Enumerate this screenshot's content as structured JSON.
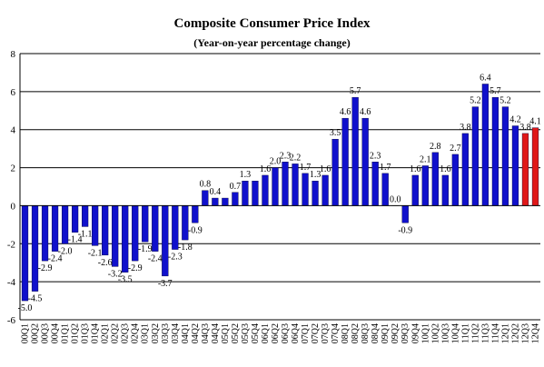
{
  "chart_data": {
    "type": "bar",
    "title": "Composite Consumer Price Index",
    "subtitle": "(Year-on-year percentage change)",
    "ylim": [
      -6,
      8
    ],
    "yticks": [
      "-6",
      "-4",
      "-2",
      "0",
      "2",
      "4",
      "6",
      "8"
    ],
    "grid": true,
    "colors": {
      "bar": "#1010cc",
      "highlight": "#e01818",
      "grid": "#000000"
    },
    "categories": [
      "00Q1",
      "00Q2",
      "00Q3",
      "00Q4",
      "01Q1",
      "01Q2",
      "01Q3",
      "01Q4",
      "02Q1",
      "02Q2",
      "02Q3",
      "02Q4",
      "03Q1",
      "03Q2",
      "03Q3",
      "03Q4",
      "04Q1",
      "04Q2",
      "04Q3",
      "04Q4",
      "05Q1",
      "05Q2",
      "05Q3",
      "05Q4",
      "06Q1",
      "06Q2",
      "06Q3",
      "06Q4",
      "07Q1",
      "07Q2",
      "07Q3",
      "07Q4",
      "08Q1",
      "08Q2",
      "08Q3",
      "08Q4",
      "09Q1",
      "09Q2",
      "09Q3",
      "09Q4",
      "10Q1",
      "10Q2",
      "10Q3",
      "10Q4",
      "11Q1",
      "11Q2",
      "11Q3",
      "11Q4",
      "12Q1",
      "12Q2",
      "12Q3",
      "12Q4"
    ],
    "values": [
      -5.0,
      -4.5,
      -2.9,
      -2.4,
      -2.0,
      -1.4,
      -1.1,
      -2.1,
      -2.6,
      -3.2,
      -3.5,
      -2.9,
      -1.9,
      -2.4,
      -3.7,
      -2.3,
      -1.8,
      -0.9,
      0.8,
      0.4,
      0.4,
      0.7,
      1.3,
      1.3,
      1.6,
      2.0,
      2.3,
      2.2,
      1.7,
      1.3,
      1.6,
      3.5,
      4.6,
      5.7,
      4.6,
      2.3,
      1.7,
      0.0,
      -0.9,
      1.6,
      2.1,
      2.8,
      1.6,
      2.7,
      3.8,
      5.2,
      6.4,
      5.7,
      5.2,
      4.2,
      3.8,
      4.1
    ],
    "labels": [
      "-5.0",
      "-4.5",
      "-2.9",
      "-2.4",
      "-2.0",
      "-1.4",
      "-1.1",
      "-2.1",
      "-2.6",
      "-3.2",
      "-3.5",
      "-2.9",
      "-1.9",
      "-2.4",
      "-3.7",
      "-2.3",
      "-1.8",
      "-0.9",
      "0.8",
      "0.4",
      "",
      "0.7",
      "1.3",
      "",
      "1.6",
      "2.0",
      "2.3",
      "2.2",
      "1.7",
      "1.3",
      "1.6",
      "3.5",
      "4.6",
      "5.7",
      "4.6",
      "2.3",
      "1.7",
      "0.0",
      "-0.9",
      "1.6",
      "2.1",
      "2.8",
      "1.6",
      "2.7",
      "3.8",
      "5.2",
      "6.4",
      "5.7",
      "5.2",
      "4.2",
      "3.8",
      "4.1"
    ],
    "highlight_from": "12Q3"
  }
}
